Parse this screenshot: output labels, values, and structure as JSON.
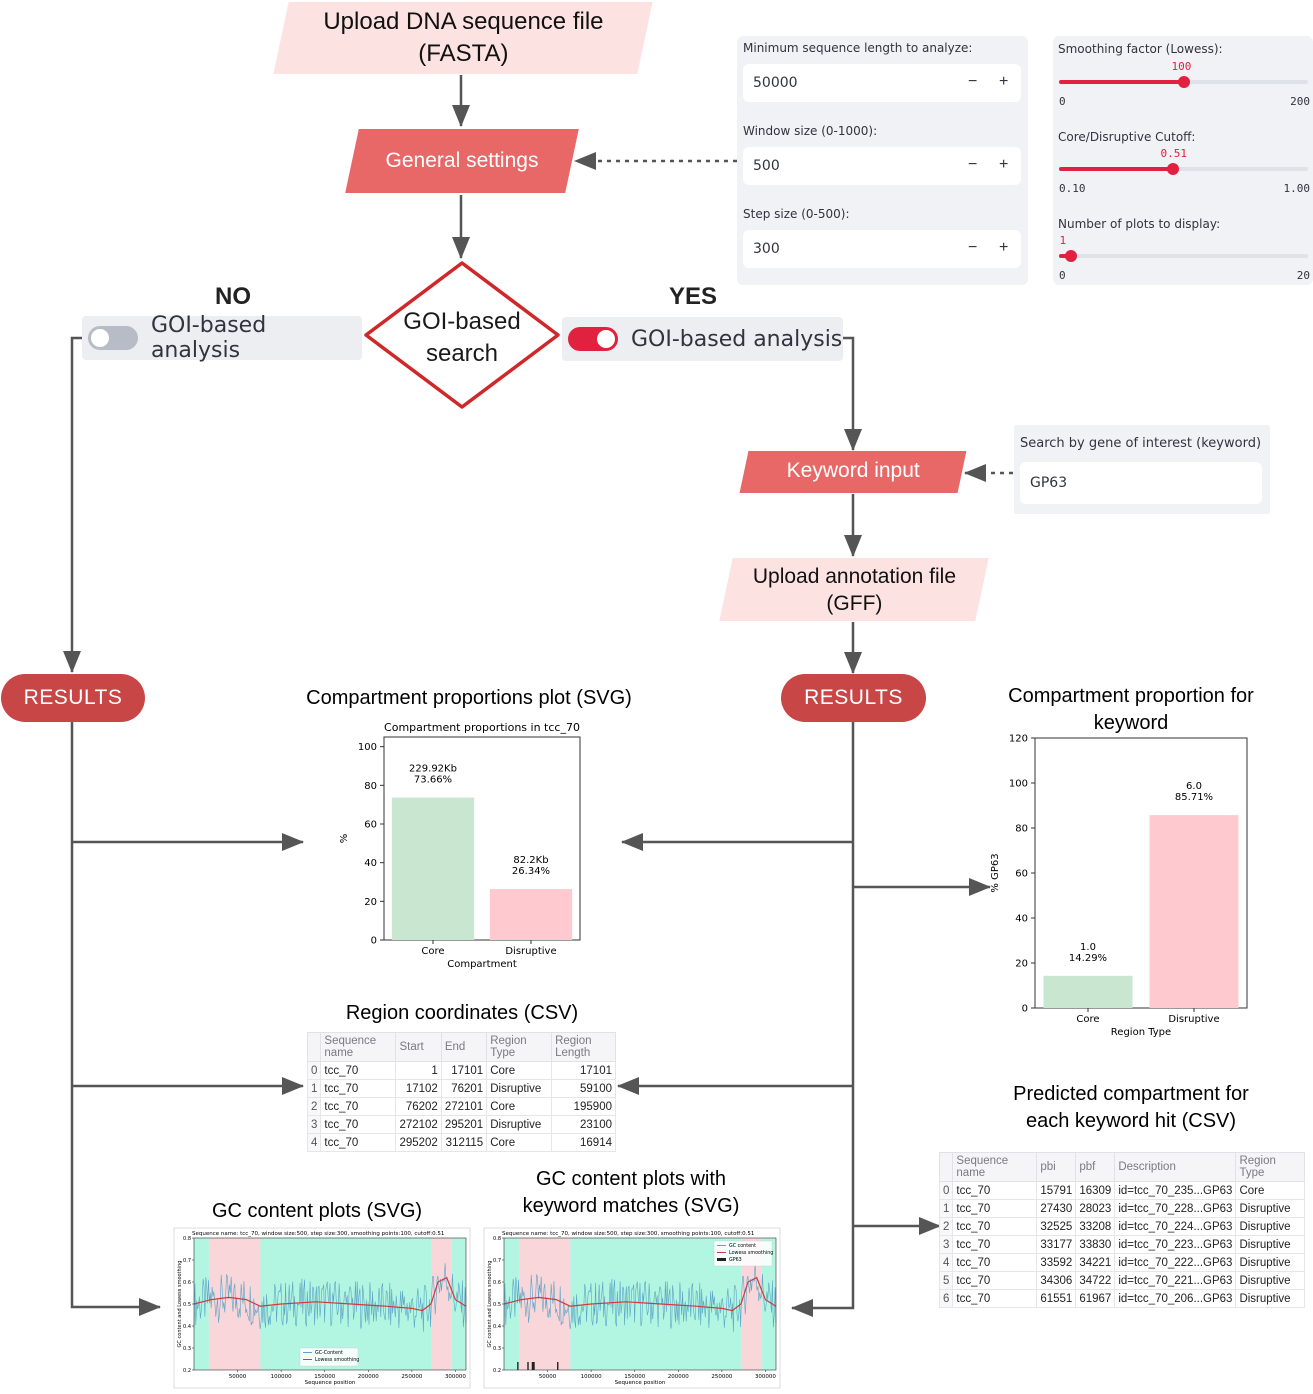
{
  "flow": {
    "upload_fasta": "Upload DNA sequence file (FASTA)",
    "general_settings": "General settings",
    "goi_search": "GOI-based search",
    "no_label": "NO",
    "yes_label": "YES",
    "toggle_label": "GOI-based analysis",
    "keyword_input": "Keyword input",
    "upload_gff": "Upload annotation file (GFF)",
    "results": "RESULTS"
  },
  "settings_left": {
    "min_len_label": "Minimum sequence length to analyze:",
    "min_len_value": "50000",
    "window_label": "Window size (0-1000):",
    "window_value": "500",
    "step_label": "Step size (0-500):",
    "step_value": "300",
    "minus": "−",
    "plus": "+"
  },
  "settings_right": {
    "smoothing_label": "Smoothing factor (Lowess):",
    "smoothing_value": "100",
    "smoothing_min": "0",
    "smoothing_max": "200",
    "smoothing_fraction": 0.5,
    "cutoff_label": "Core/Disruptive Cutoff:",
    "cutoff_value": "0.51",
    "cutoff_min": "0.10",
    "cutoff_max": "1.00",
    "cutoff_fraction": 0.456,
    "nplots_label": "Number of plots to display:",
    "nplots_value": "1",
    "nplots_min": "0",
    "nplots_max": "20",
    "nplots_fraction": 0.05
  },
  "keyword_box": {
    "label": "Search by gene of interest (keyword)",
    "value": "GP63"
  },
  "outputs": {
    "prop_plot_title": "Compartment proportions plot (SVG)",
    "keyword_prop_title": "Compartment proportion for keyword",
    "region_csv_title": "Region coordinates (CSV)",
    "keyword_csv_title": "Predicted compartment for each keyword hit (CSV)",
    "gc_plot_title": "GC content plots (SVG)",
    "gc_keyword_title": "GC content plots with keyword matches (SVG)"
  },
  "colors": {
    "results": "#c94646",
    "red_box": "#e86868",
    "pink_box": "#fde2e2",
    "accent": "#e0213f",
    "core": "#c8e6d0",
    "disruptive": "#ffc9d0"
  },
  "chart_data": [
    {
      "type": "bar",
      "title": "Compartment proportions in tcc_70",
      "categories": [
        "Core",
        "Disruptive"
      ],
      "values": [
        73.66,
        26.34
      ],
      "bar_labels": [
        [
          "229.92Kb",
          "73.66%"
        ],
        [
          "82.2Kb",
          "26.34%"
        ]
      ],
      "xlabel": "Compartment",
      "ylabel": "%",
      "ylim": [
        0,
        105
      ],
      "yticks": [
        0,
        20,
        40,
        60,
        80,
        100
      ],
      "colors": [
        "#c8e6d0",
        "#ffc9d0"
      ]
    },
    {
      "type": "bar",
      "title": "",
      "categories": [
        "Core",
        "Disruptive"
      ],
      "values": [
        14.29,
        85.71
      ],
      "bar_labels": [
        [
          "1.0",
          "14.29%"
        ],
        [
          "6.0",
          "85.71%"
        ]
      ],
      "xlabel": "Region Type",
      "ylabel": "% GP63",
      "ylim": [
        0,
        120
      ],
      "yticks": [
        0,
        20,
        40,
        60,
        80,
        100,
        120
      ],
      "colors": [
        "#c8e6d0",
        "#ffc9d0"
      ]
    },
    {
      "type": "line",
      "title": "Sequence name: tcc_70, window size:500, step size:300, smoothing points:100, cutoff:0.51",
      "xlabel": "Sequence position",
      "ylabel": "GC content and Lowess smoothing",
      "xticks": [
        50000,
        100000,
        150000,
        200000,
        250000,
        300000
      ],
      "yticks": [
        0.2,
        0.3,
        0.4,
        0.5,
        0.6,
        0.7,
        0.8
      ],
      "xlim": [
        0,
        312115
      ],
      "ylim": [
        0.2,
        0.8
      ],
      "legend": [
        "GC-Content",
        "Lowess smoothing"
      ],
      "legend_position": "bottom-center",
      "regions": [
        {
          "start": 1,
          "end": 17101,
          "type": "Core"
        },
        {
          "start": 17102,
          "end": 76201,
          "type": "Disruptive"
        },
        {
          "start": 76202,
          "end": 272101,
          "type": "Core"
        },
        {
          "start": 272102,
          "end": 295201,
          "type": "Disruptive"
        },
        {
          "start": 295202,
          "end": 312115,
          "type": "Core"
        }
      ],
      "lowess_x": [
        0,
        20000,
        40000,
        60000,
        76000,
        100000,
        140000,
        180000,
        220000,
        250000,
        262000,
        272000,
        280000,
        290000,
        300000,
        312000
      ],
      "lowess_y": [
        0.5,
        0.52,
        0.53,
        0.52,
        0.49,
        0.5,
        0.51,
        0.5,
        0.49,
        0.48,
        0.47,
        0.5,
        0.6,
        0.62,
        0.52,
        0.49
      ]
    },
    {
      "type": "line",
      "title": "Sequence name: tcc_70, window size:500, step size:300, smoothing points:100, cutoff:0.51",
      "xlabel": "Sequence position",
      "ylabel": "GC content and Lowess smoothing",
      "xticks": [
        50000,
        100000,
        150000,
        200000,
        250000,
        300000
      ],
      "yticks": [
        0.2,
        0.3,
        0.4,
        0.5,
        0.6,
        0.7,
        0.8
      ],
      "xlim": [
        0,
        312115
      ],
      "ylim": [
        0.2,
        0.8
      ],
      "legend": [
        "GC content",
        "Lowess smoothing",
        "GP63"
      ],
      "legend_position": "top-right",
      "regions": [
        {
          "start": 1,
          "end": 17101,
          "type": "Core"
        },
        {
          "start": 17102,
          "end": 76201,
          "type": "Disruptive"
        },
        {
          "start": 76202,
          "end": 272101,
          "type": "Core"
        },
        {
          "start": 272102,
          "end": 295201,
          "type": "Disruptive"
        },
        {
          "start": 295202,
          "end": 312115,
          "type": "Core"
        }
      ],
      "lowess_x": [
        0,
        20000,
        40000,
        60000,
        76000,
        100000,
        140000,
        180000,
        220000,
        250000,
        262000,
        272000,
        280000,
        290000,
        300000,
        312000
      ],
      "lowess_y": [
        0.5,
        0.52,
        0.53,
        0.52,
        0.49,
        0.5,
        0.51,
        0.5,
        0.49,
        0.48,
        0.47,
        0.5,
        0.6,
        0.62,
        0.52,
        0.49
      ],
      "keyword_hits": [
        15791,
        27430,
        32525,
        33177,
        33592,
        34306,
        61551
      ]
    }
  ],
  "region_table": {
    "columns": [
      "",
      "Sequence name",
      "Start",
      "End",
      "Region Type",
      "Region Length"
    ],
    "rows": [
      [
        "0",
        "tcc_70",
        "1",
        "17101",
        "Core",
        "17101"
      ],
      [
        "1",
        "tcc_70",
        "17102",
        "76201",
        "Disruptive",
        "59100"
      ],
      [
        "2",
        "tcc_70",
        "76202",
        "272101",
        "Core",
        "195900"
      ],
      [
        "3",
        "tcc_70",
        "272102",
        "295201",
        "Disruptive",
        "23100"
      ],
      [
        "4",
        "tcc_70",
        "295202",
        "312115",
        "Core",
        "16914"
      ]
    ]
  },
  "keyword_table": {
    "columns": [
      "",
      "Sequence name",
      "pbi",
      "pbf",
      "Description",
      "Region Type"
    ],
    "rows": [
      [
        "0",
        "tcc_70",
        "15791",
        "16309",
        "id=tcc_70_235...GP63",
        "Core"
      ],
      [
        "1",
        "tcc_70",
        "27430",
        "28023",
        "id=tcc_70_228...GP63",
        "Disruptive"
      ],
      [
        "2",
        "tcc_70",
        "32525",
        "33208",
        "id=tcc_70_224...GP63",
        "Disruptive"
      ],
      [
        "3",
        "tcc_70",
        "33177",
        "33830",
        "id=tcc_70_223...GP63",
        "Disruptive"
      ],
      [
        "4",
        "tcc_70",
        "33592",
        "34221",
        "id=tcc_70_222...GP63",
        "Disruptive"
      ],
      [
        "5",
        "tcc_70",
        "34306",
        "34722",
        "id=tcc_70_221...GP63",
        "Disruptive"
      ],
      [
        "6",
        "tcc_70",
        "61551",
        "61967",
        "id=tcc_70_206...GP63",
        "Disruptive"
      ]
    ]
  }
}
